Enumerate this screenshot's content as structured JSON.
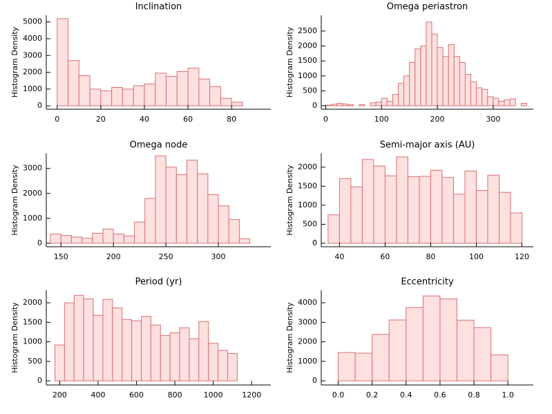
{
  "chart_data": [
    {
      "type": "histogram",
      "title": "Inclination",
      "ylabel": "Histogram Density",
      "color": "#fde0e0",
      "edgecolor": "#d9706f",
      "bins": [
        0,
        5,
        10,
        15,
        20,
        25,
        30,
        35,
        40,
        45,
        50,
        55,
        60,
        65,
        70,
        75,
        80,
        85
      ],
      "values": [
        5200,
        2700,
        1800,
        1000,
        900,
        1100,
        1000,
        1200,
        1300,
        1950,
        1750,
        2050,
        2250,
        1600,
        1150,
        450,
        220
      ],
      "xlim": [
        -5,
        98
      ],
      "xticks": [
        0,
        20,
        40,
        60,
        80
      ],
      "ylim": [
        -200,
        5400
      ],
      "yticks": [
        0,
        1000,
        2000,
        3000,
        4000,
        5000
      ]
    },
    {
      "type": "histogram",
      "title": "Omega periastron",
      "ylabel": "Histogram Density",
      "color": "#fde0e0",
      "edgecolor": "#d9706f",
      "bins": [
        0,
        10,
        20,
        30,
        40,
        50,
        60,
        70,
        80,
        90,
        100,
        110,
        120,
        130,
        140,
        150,
        160,
        170,
        180,
        190,
        200,
        210,
        220,
        230,
        240,
        250,
        260,
        270,
        280,
        290,
        300,
        310,
        320,
        330,
        340,
        350,
        360
      ],
      "values": [
        20,
        50,
        80,
        60,
        30,
        0,
        40,
        0,
        100,
        120,
        250,
        150,
        380,
        750,
        1000,
        1450,
        1900,
        2000,
        2800,
        2400,
        1950,
        1650,
        2050,
        1650,
        1450,
        1050,
        800,
        600,
        550,
        300,
        250,
        150,
        200,
        230,
        0,
        80
      ],
      "xlim": [
        -8,
        372
      ],
      "xticks": [
        0,
        100,
        200,
        300
      ],
      "ylim": [
        -115,
        3030
      ],
      "yticks": [
        0,
        500,
        1000,
        1500,
        2000,
        2500
      ]
    },
    {
      "type": "histogram",
      "title": "Omega node",
      "ylabel": "Histogram Density",
      "color": "#fde0e0",
      "edgecolor": "#d9706f",
      "bins": [
        140,
        150,
        160,
        170,
        180,
        190,
        200,
        210,
        220,
        230,
        240,
        250,
        260,
        270,
        280,
        290,
        300,
        310,
        320,
        330
      ],
      "values": [
        370,
        310,
        250,
        200,
        400,
        570,
        370,
        290,
        850,
        1800,
        3500,
        3050,
        2750,
        3330,
        2780,
        1950,
        1500,
        950,
        180
      ],
      "xlim": [
        136,
        350
      ],
      "xticks": [
        150,
        200,
        250,
        300
      ],
      "ylim": [
        -140,
        3600
      ],
      "yticks": [
        0,
        1000,
        2000,
        3000
      ]
    },
    {
      "type": "histogram",
      "title": "Semi-major axis (AU)",
      "ylabel": "Histogram Density",
      "color": "#fde0e0",
      "edgecolor": "#d9706f",
      "bins": [
        35,
        40,
        45,
        50,
        55,
        60,
        65,
        70,
        75,
        80,
        85,
        90,
        95,
        100,
        105,
        110,
        115,
        120
      ],
      "values": [
        750,
        1700,
        1480,
        2200,
        2030,
        1770,
        2270,
        1750,
        1760,
        1920,
        1730,
        1290,
        1900,
        1390,
        1790,
        1340,
        800
      ],
      "xlim": [
        32,
        125
      ],
      "xticks": [
        40,
        60,
        80,
        100,
        120
      ],
      "ylim": [
        -90,
        2360
      ],
      "yticks": [
        0,
        500,
        1000,
        1500,
        2000
      ]
    },
    {
      "type": "histogram",
      "title": "Period (yr)",
      "ylabel": "Histogram Density",
      "color": "#fde0e0",
      "edgecolor": "#d9706f",
      "bins": [
        175,
        225,
        275,
        325,
        375,
        425,
        475,
        525,
        575,
        625,
        675,
        725,
        775,
        825,
        875,
        925,
        975,
        1025,
        1075,
        1125
      ],
      "values": [
        920,
        2000,
        2190,
        2100,
        1680,
        2090,
        1870,
        1570,
        1540,
        1650,
        1430,
        1160,
        1230,
        1360,
        1080,
        1520,
        960,
        780,
        700
      ],
      "xlim": [
        130,
        1300
      ],
      "xticks": [
        200,
        400,
        600,
        800,
        1000,
        1200
      ],
      "ylim": [
        -105,
        2320
      ],
      "yticks": [
        0,
        500,
        1000,
        1500,
        2000
      ]
    },
    {
      "type": "histogram",
      "title": "Eccentricity",
      "ylabel": "Histogram Density",
      "color": "#fde0e0",
      "edgecolor": "#d9706f",
      "bins": [
        0,
        0.1,
        0.2,
        0.3,
        0.4,
        0.5,
        0.6,
        0.7,
        0.8,
        0.9,
        1.0
      ],
      "values": [
        1450,
        1420,
        2380,
        3120,
        3760,
        4350,
        4200,
        3110,
        2730,
        1330
      ],
      "xlim": [
        -0.1,
        1.15
      ],
      "xticks": [
        {
          "value": 0,
          "label": "0.0"
        },
        {
          "value": 0.2,
          "label": "0.2"
        },
        {
          "value": 0.4,
          "label": "0.4"
        },
        {
          "value": 0.6,
          "label": "0.6"
        },
        {
          "value": 0.8,
          "label": "0.8"
        },
        {
          "value": 1.0,
          "label": "1.0"
        }
      ],
      "ylim": [
        -210,
        4640
      ],
      "yticks": [
        0,
        1000,
        2000,
        3000,
        4000
      ]
    }
  ]
}
